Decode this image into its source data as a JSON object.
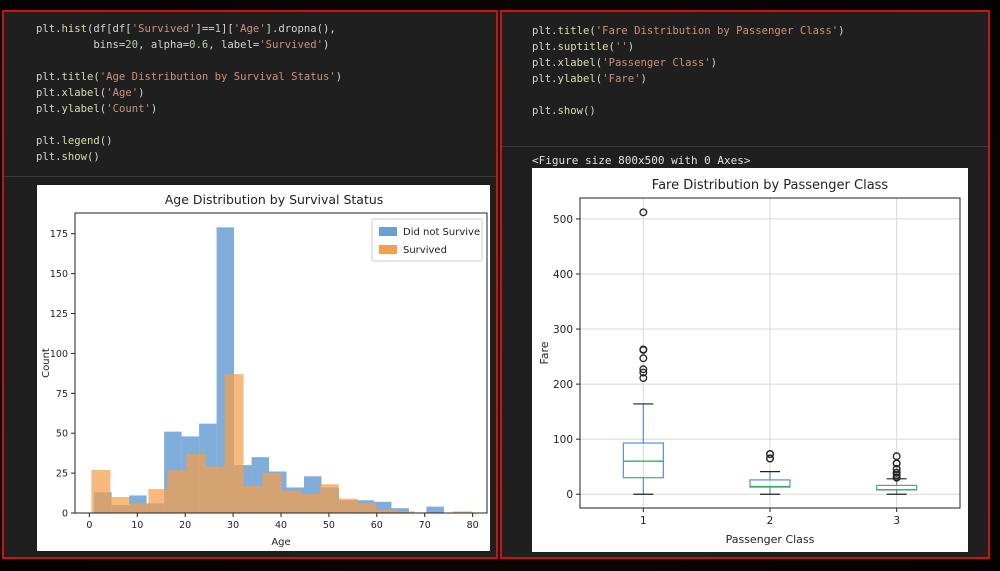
{
  "left_cell": {
    "code_lines": [
      [
        {
          "t": "plt.",
          "c": ""
        },
        {
          "t": "hist",
          "c": "fn"
        },
        {
          "t": "(df[df[",
          "c": ""
        },
        {
          "t": "'Survived'",
          "c": "str"
        },
        {
          "t": "]==",
          "c": ""
        },
        {
          "t": "1",
          "c": "num"
        },
        {
          "t": "][",
          "c": ""
        },
        {
          "t": "'Age'",
          "c": "str"
        },
        {
          "t": "].dropna(),",
          "c": ""
        }
      ],
      [
        {
          "t": "         bins=",
          "c": ""
        },
        {
          "t": "20",
          "c": "num"
        },
        {
          "t": ", alpha=",
          "c": ""
        },
        {
          "t": "0.6",
          "c": "num"
        },
        {
          "t": ", label=",
          "c": ""
        },
        {
          "t": "'Survived'",
          "c": "str"
        },
        {
          "t": ")",
          "c": ""
        }
      ],
      [],
      [
        {
          "t": "plt.",
          "c": ""
        },
        {
          "t": "title",
          "c": "fn"
        },
        {
          "t": "(",
          "c": ""
        },
        {
          "t": "'Age Distribution by Survival Status'",
          "c": "str"
        },
        {
          "t": ")",
          "c": ""
        }
      ],
      [
        {
          "t": "plt.",
          "c": ""
        },
        {
          "t": "xlabel",
          "c": "fn"
        },
        {
          "t": "(",
          "c": ""
        },
        {
          "t": "'Age'",
          "c": "str"
        },
        {
          "t": ")",
          "c": ""
        }
      ],
      [
        {
          "t": "plt.",
          "c": ""
        },
        {
          "t": "ylabel",
          "c": "fn"
        },
        {
          "t": "(",
          "c": ""
        },
        {
          "t": "'Count'",
          "c": "str"
        },
        {
          "t": ")",
          "c": ""
        }
      ],
      [],
      [
        {
          "t": "plt.",
          "c": ""
        },
        {
          "t": "legend",
          "c": "fn"
        },
        {
          "t": "()",
          "c": ""
        }
      ],
      [
        {
          "t": "plt.",
          "c": ""
        },
        {
          "t": "show",
          "c": "fn"
        },
        {
          "t": "()",
          "c": ""
        }
      ]
    ]
  },
  "right_cell": {
    "code_lines": [
      [
        {
          "t": "plt.",
          "c": ""
        },
        {
          "t": "title",
          "c": "fn"
        },
        {
          "t": "(",
          "c": ""
        },
        {
          "t": "'Fare Distribution by Passenger Class'",
          "c": "str"
        },
        {
          "t": ")",
          "c": ""
        }
      ],
      [
        {
          "t": "plt.",
          "c": ""
        },
        {
          "t": "suptitle",
          "c": "fn"
        },
        {
          "t": "(",
          "c": ""
        },
        {
          "t": "''",
          "c": "str"
        },
        {
          "t": ")",
          "c": ""
        }
      ],
      [
        {
          "t": "plt.",
          "c": ""
        },
        {
          "t": "xlabel",
          "c": "fn"
        },
        {
          "t": "(",
          "c": ""
        },
        {
          "t": "'Passenger Class'",
          "c": "str"
        },
        {
          "t": ")",
          "c": ""
        }
      ],
      [
        {
          "t": "plt.",
          "c": ""
        },
        {
          "t": "ylabel",
          "c": "fn"
        },
        {
          "t": "(",
          "c": ""
        },
        {
          "t": "'Fare'",
          "c": "str"
        },
        {
          "t": ")",
          "c": ""
        }
      ],
      [],
      [
        {
          "t": "plt.",
          "c": ""
        },
        {
          "t": "show",
          "c": "fn"
        },
        {
          "t": "()",
          "c": ""
        }
      ]
    ],
    "output_text": "<Figure size 800x500 with 0 Axes>"
  },
  "colors": {
    "did_not_survive": "#6a9fd4",
    "survived": "#f5a04a",
    "overlap": "#bd9166",
    "box": "#5b8fc7",
    "median": "#3fa565",
    "accent_border": "#c81414"
  },
  "chart_data": [
    {
      "type": "bar",
      "title": "Age Distribution by Survival Status",
      "xlabel": "Age",
      "ylabel": "Count",
      "xlim": [
        -3,
        83
      ],
      "ylim": [
        0,
        188
      ],
      "xticks": [
        "0",
        "10",
        "20",
        "30",
        "40",
        "50",
        "60",
        "70",
        "80"
      ],
      "yticks": [
        "0",
        "25",
        "50",
        "75",
        "100",
        "125",
        "150",
        "175"
      ],
      "legend_position": "top-right",
      "grid": false,
      "series": [
        {
          "name": "Did not Survive",
          "x_start": 1,
          "bin_width": 3.65,
          "values": [
            13,
            5,
            11,
            6,
            51,
            48,
            56,
            179,
            30,
            35,
            26,
            16,
            23,
            16,
            8,
            8,
            7,
            3,
            0,
            4
          ]
        },
        {
          "name": "Survived",
          "x_start": 0.42,
          "bin_width": 3.97,
          "values": [
            27,
            10,
            6,
            15,
            27,
            37,
            29,
            87,
            17,
            25,
            14,
            12,
            18,
            9,
            6,
            2,
            1,
            0,
            0,
            1
          ]
        }
      ]
    },
    {
      "type": "box",
      "title": "Fare Distribution by Passenger Class",
      "xlabel": "Passenger Class",
      "ylabel": "Fare",
      "categories": [
        "1",
        "2",
        "3"
      ],
      "xticks": [
        "1",
        "2",
        "3"
      ],
      "yticks": [
        "0",
        "100",
        "200",
        "300",
        "400",
        "500"
      ],
      "ylim": [
        -25,
        538
      ],
      "grid": true,
      "boxes": [
        {
          "label": "1",
          "whisker_low": 0,
          "q1": 30,
          "median": 60,
          "q3": 93,
          "whisker_high": 164,
          "fliers": [
            512,
            263,
            262,
            247,
            227,
            221,
            211
          ]
        },
        {
          "label": "2",
          "whisker_low": 0,
          "q1": 13,
          "median": 14,
          "q3": 26,
          "whisker_high": 41,
          "fliers": [
            73,
            73,
            65,
            65
          ]
        },
        {
          "label": "3",
          "whisker_low": 0,
          "q1": 8,
          "median": 8,
          "q3": 16,
          "whisker_high": 28,
          "fliers": [
            69,
            56,
            56,
            46,
            46,
            39,
            39,
            35,
            31,
            30
          ]
        }
      ]
    }
  ]
}
